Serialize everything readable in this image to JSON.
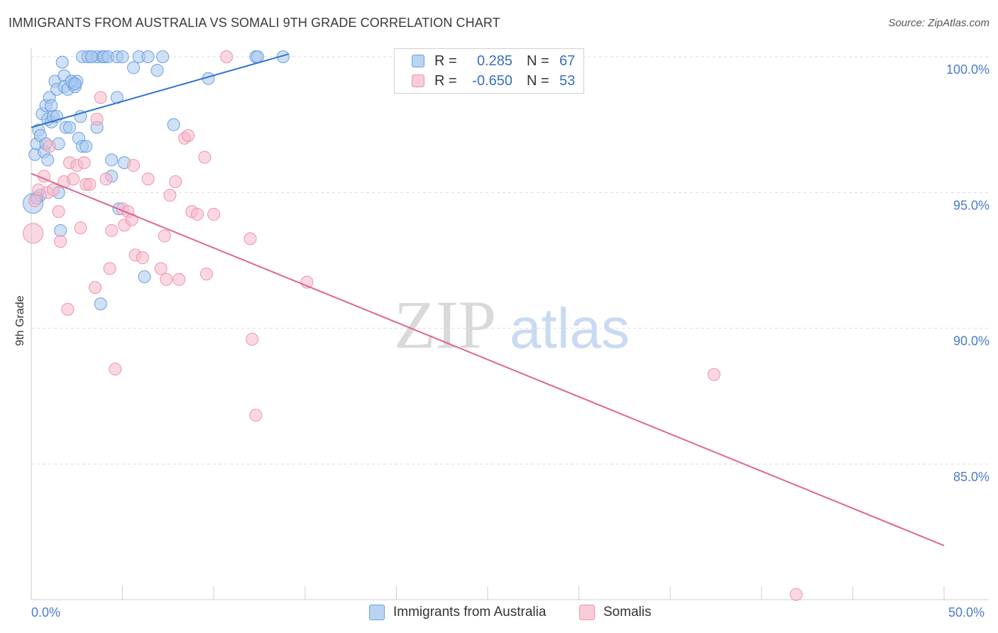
{
  "header": {
    "title": "IMMIGRANTS FROM AUSTRALIA VS SOMALI 9TH GRADE CORRELATION CHART",
    "source": "Source: ZipAtlas.com"
  },
  "watermark": {
    "zip": "ZIP",
    "atlas": "atlas"
  },
  "legend_top": {
    "rows": [
      {
        "r_label": "R =",
        "r_value": "0.285",
        "n_label": "N =",
        "n_value": "67",
        "color": "#a9c8ef"
      },
      {
        "r_label": "R =",
        "r_value": "-0.650",
        "n_label": "N =",
        "n_value": "53",
        "color": "#f6b8cb"
      }
    ]
  },
  "legend_bottom": {
    "items": [
      {
        "label": "Immigrants from Australia",
        "color": "#a9c8ef"
      },
      {
        "label": "Somalis",
        "color": "#f6b8cb"
      }
    ]
  },
  "chart_data": {
    "type": "scatter",
    "title": "IMMIGRANTS FROM AUSTRALIA VS SOMALI 9TH GRADE CORRELATION CHART",
    "xlabel": "",
    "ylabel": "9th Grade",
    "xlim": [
      0,
      50
    ],
    "ylim": [
      80,
      100.5
    ],
    "x_tick_labels": [
      "0.0%",
      "50.0%"
    ],
    "y_ticks": [
      85,
      90,
      95,
      100
    ],
    "y_tick_labels": [
      "85.0%",
      "90.0%",
      "95.0%",
      "100.0%"
    ],
    "grid": true,
    "series": [
      {
        "name": "Immigrants from Australia",
        "color": "#6a9fe0",
        "fill": "#a9c8ef",
        "line_color": "#2f74d0",
        "r": 0.285,
        "n": 67,
        "trend": {
          "x": [
            0,
            14.1
          ],
          "y": [
            97.4,
            100.1
          ]
        },
        "points": [
          [
            0.1,
            94.6
          ],
          [
            0.2,
            96.4
          ],
          [
            0.3,
            96.8
          ],
          [
            0.4,
            97.3
          ],
          [
            0.5,
            97.1
          ],
          [
            0.5,
            94.9
          ],
          [
            0.6,
            97.9
          ],
          [
            0.7,
            96.5
          ],
          [
            0.8,
            98.2
          ],
          [
            0.9,
            97.7
          ],
          [
            0.9,
            96.2
          ],
          [
            1.0,
            98.5
          ],
          [
            1.1,
            97.6
          ],
          [
            1.2,
            97.8
          ],
          [
            1.3,
            99.1
          ],
          [
            1.4,
            98.8
          ],
          [
            1.5,
            96.8
          ],
          [
            1.5,
            95.0
          ],
          [
            1.6,
            93.6
          ],
          [
            1.7,
            99.8
          ],
          [
            1.8,
            99.3
          ],
          [
            1.8,
            98.9
          ],
          [
            1.9,
            97.4
          ],
          [
            2.0,
            98.8
          ],
          [
            2.1,
            97.4
          ],
          [
            2.2,
            99.1
          ],
          [
            2.3,
            99.0
          ],
          [
            2.4,
            98.9
          ],
          [
            2.5,
            99.1
          ],
          [
            2.6,
            97.0
          ],
          [
            2.7,
            97.8
          ],
          [
            2.8,
            96.7
          ],
          [
            2.8,
            100.0
          ],
          [
            3.0,
            96.7
          ],
          [
            3.1,
            100.0
          ],
          [
            3.3,
            100.0
          ],
          [
            3.6,
            100.0
          ],
          [
            3.9,
            100.0
          ],
          [
            3.6,
            97.4
          ],
          [
            3.8,
            90.9
          ],
          [
            4.0,
            100.0
          ],
          [
            4.2,
            100.0
          ],
          [
            4.4,
            96.2
          ],
          [
            4.4,
            95.6
          ],
          [
            4.7,
            100.0
          ],
          [
            4.7,
            98.5
          ],
          [
            4.8,
            94.4
          ],
          [
            5.1,
            96.1
          ],
          [
            5.6,
            99.6
          ],
          [
            5.9,
            100.0
          ],
          [
            6.4,
            100.0
          ],
          [
            6.9,
            99.5
          ],
          [
            7.2,
            100.0
          ],
          [
            7.8,
            97.5
          ],
          [
            6.2,
            91.9
          ],
          [
            9.7,
            99.2
          ],
          [
            12.3,
            100.0
          ],
          [
            12.4,
            100.0
          ],
          [
            13.8,
            100.0
          ],
          [
            2.2,
            99.1
          ],
          [
            1.4,
            97.8
          ],
          [
            0.8,
            96.8
          ],
          [
            2.4,
            99.0
          ],
          [
            5.0,
            100.0
          ],
          [
            3.3,
            100.0
          ],
          [
            1.1,
            98.2
          ],
          [
            0.3,
            94.8
          ]
        ]
      },
      {
        "name": "Somalis",
        "color": "#ee93ad",
        "fill": "#f6b8cb",
        "line_color": "#e06593",
        "r": -0.65,
        "n": 53,
        "trend": {
          "x": [
            0,
            50
          ],
          "y": [
            95.7,
            82.0
          ]
        },
        "points": [
          [
            0.1,
            93.5
          ],
          [
            0.4,
            95.1
          ],
          [
            0.7,
            95.6
          ],
          [
            0.9,
            95.0
          ],
          [
            1.0,
            96.7
          ],
          [
            1.2,
            95.1
          ],
          [
            1.5,
            94.3
          ],
          [
            1.6,
            93.2
          ],
          [
            1.8,
            95.4
          ],
          [
            2.0,
            90.7
          ],
          [
            2.1,
            96.1
          ],
          [
            2.3,
            95.5
          ],
          [
            2.5,
            96.0
          ],
          [
            2.7,
            93.7
          ],
          [
            2.9,
            96.1
          ],
          [
            3.0,
            95.3
          ],
          [
            3.2,
            95.3
          ],
          [
            3.5,
            91.5
          ],
          [
            3.6,
            97.7
          ],
          [
            3.8,
            98.5
          ],
          [
            4.1,
            95.5
          ],
          [
            4.3,
            92.2
          ],
          [
            4.4,
            93.6
          ],
          [
            4.6,
            88.5
          ],
          [
            5.0,
            94.4
          ],
          [
            5.1,
            93.8
          ],
          [
            5.3,
            94.3
          ],
          [
            5.5,
            94.0
          ],
          [
            5.6,
            96.0
          ],
          [
            5.7,
            92.7
          ],
          [
            6.1,
            92.6
          ],
          [
            6.4,
            95.5
          ],
          [
            7.1,
            92.2
          ],
          [
            7.3,
            93.4
          ],
          [
            7.4,
            91.8
          ],
          [
            7.6,
            94.9
          ],
          [
            7.9,
            95.4
          ],
          [
            8.1,
            91.8
          ],
          [
            8.4,
            97.0
          ],
          [
            8.6,
            97.1
          ],
          [
            8.8,
            94.3
          ],
          [
            9.1,
            94.2
          ],
          [
            9.5,
            96.3
          ],
          [
            9.6,
            92.0
          ],
          [
            10.0,
            94.2
          ],
          [
            10.7,
            100.0
          ],
          [
            12.0,
            93.3
          ],
          [
            12.1,
            89.6
          ],
          [
            12.3,
            86.8
          ],
          [
            15.1,
            91.7
          ],
          [
            37.4,
            88.3
          ],
          [
            41.9,
            80.2
          ],
          [
            0.2,
            94.7
          ]
        ]
      }
    ]
  }
}
